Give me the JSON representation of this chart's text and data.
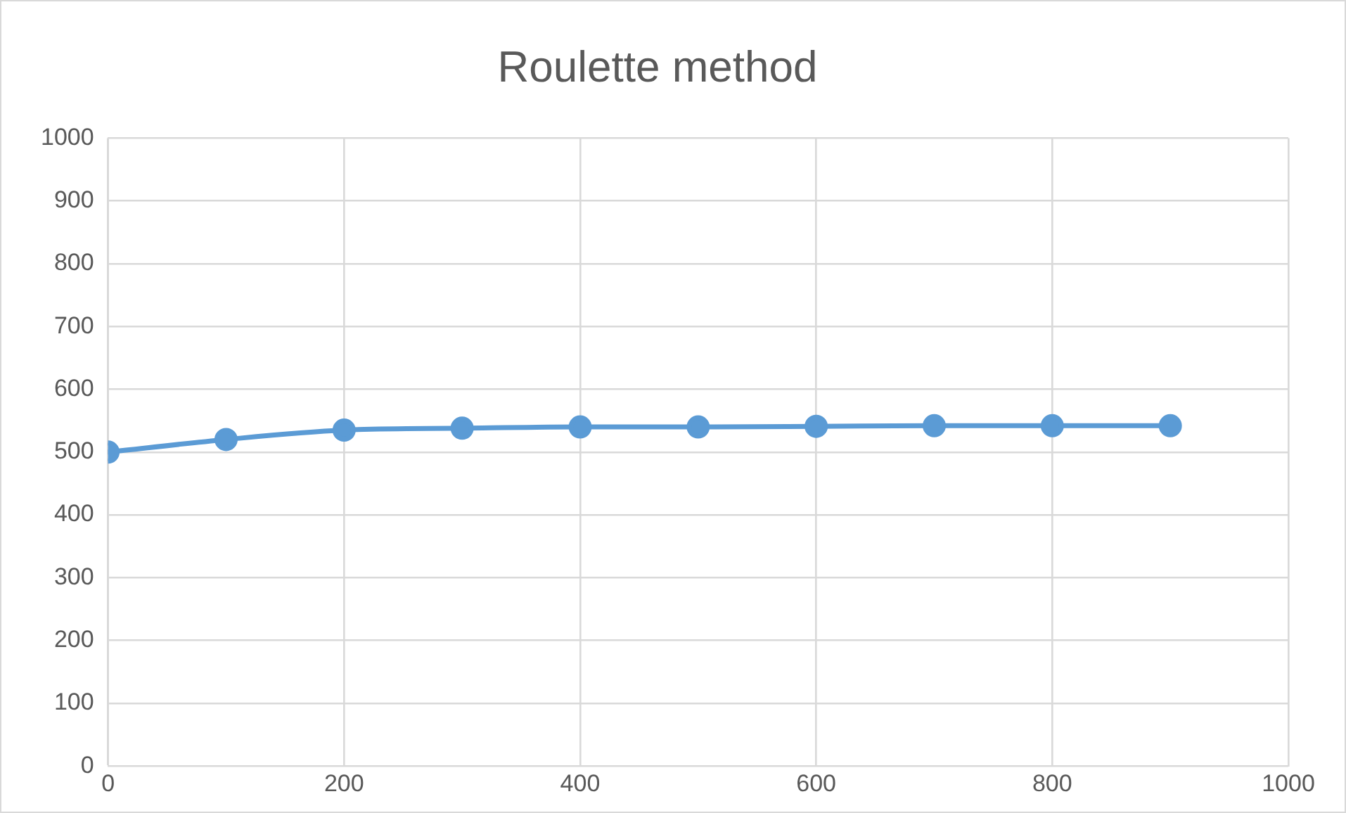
{
  "chart_data": {
    "type": "line",
    "title": "Roulette method",
    "x": [
      0,
      100,
      200,
      300,
      400,
      500,
      600,
      700,
      800,
      900
    ],
    "series": [
      {
        "color": "#5b9bd5",
        "values": [
          500,
          520,
          535,
          538,
          540,
          540,
          541,
          542,
          542,
          542
        ]
      }
    ],
    "xlim": [
      0,
      1000
    ],
    "xticks": [
      0,
      200,
      400,
      600,
      800,
      1000
    ],
    "ylim": [
      0,
      1000
    ],
    "yticks": [
      0,
      100,
      200,
      300,
      400,
      500,
      600,
      700,
      800,
      900,
      1000
    ],
    "grid": true,
    "legend": false,
    "marker": "circle",
    "line_style": "solid"
  }
}
